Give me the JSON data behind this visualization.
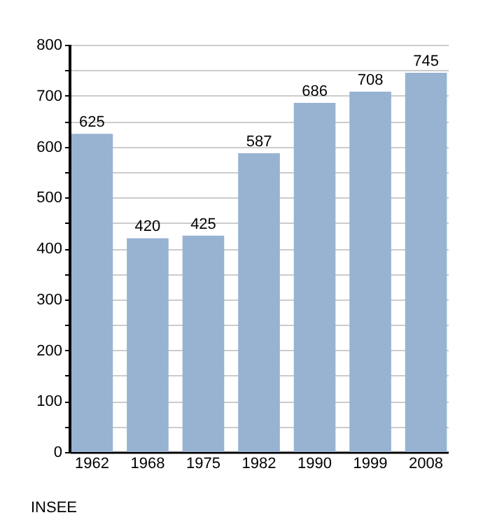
{
  "chart_data": {
    "type": "bar",
    "categories": [
      "1962",
      "1968",
      "1975",
      "1982",
      "1990",
      "1999",
      "2008"
    ],
    "values": [
      625,
      420,
      425,
      587,
      686,
      708,
      745
    ],
    "color": "#98b3d1",
    "ylim": [
      0,
      800
    ],
    "yticks": [
      0,
      {
        "value": 50,
        "label": null
      },
      100,
      {
        "value": 150,
        "label": null
      },
      200,
      {
        "value": 250,
        "label": null
      },
      300,
      {
        "value": 350,
        "label": null
      },
      400,
      {
        "value": 450,
        "label": null
      },
      500,
      {
        "value": 550,
        "label": null
      },
      600,
      {
        "value": 650,
        "label": null
      },
      700,
      {
        "value": 750,
        "label": null
      },
      800
    ],
    "grid": "y",
    "data_labels": true,
    "annotations": [
      "INSEE"
    ]
  }
}
